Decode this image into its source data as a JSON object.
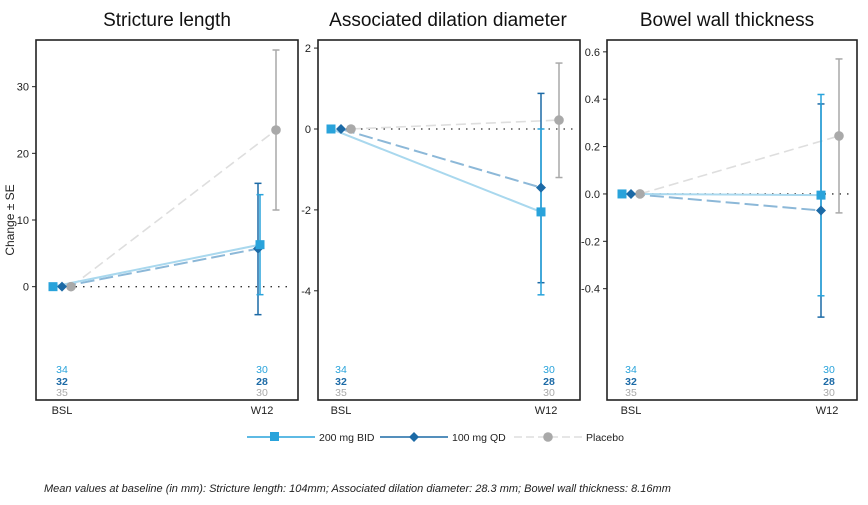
{
  "colors": {
    "s200": "#29a3db",
    "s200_line": "#a9d8ee",
    "s100": "#1c6aa6",
    "s100_line": "#8cb8d8",
    "placebo": "#a9a9a9",
    "placebo_line": "#dedede"
  },
  "legend": [
    {
      "label": "200 mg BID",
      "marker": "square"
    },
    {
      "label": "100 mg QD",
      "marker": "diamond"
    },
    {
      "label": "Placebo",
      "marker": "circle"
    }
  ],
  "footnote": "Mean values at baseline (in mm): Stricture length: 104mm; Associated dilation diameter: 28.3 mm; Bowel wall thickness: 8.16mm",
  "chart_data": [
    {
      "type": "line",
      "title": "Stricture length",
      "ylabel": "Change ± SE",
      "categories": [
        "BSL",
        "W12"
      ],
      "ylim": [
        -17,
        37
      ],
      "yticks": [
        0,
        10,
        20,
        30
      ],
      "ytick_labels": [
        "0",
        "10",
        "20",
        "30"
      ],
      "series": [
        {
          "name": "200 mg BID",
          "values": [
            0,
            6.3
          ],
          "err_low": [
            0,
            -1.2
          ],
          "err_high": [
            0,
            13.8
          ],
          "n": [
            34,
            30
          ]
        },
        {
          "name": "100 mg QD",
          "values": [
            0,
            5.7
          ],
          "err_low": [
            0,
            -4.2
          ],
          "err_high": [
            0,
            15.5
          ],
          "n": [
            32,
            28
          ]
        },
        {
          "name": "Placebo",
          "values": [
            0,
            23.5
          ],
          "err_low": [
            0,
            11.5
          ],
          "err_high": [
            0,
            35.5
          ],
          "n": [
            35,
            30
          ]
        }
      ]
    },
    {
      "type": "line",
      "title": "Associated dilation diameter",
      "categories": [
        "BSL",
        "W12"
      ],
      "ylim": [
        -6.7,
        2.2
      ],
      "yticks": [
        -4,
        -2,
        0,
        2
      ],
      "ytick_labels": [
        "-4",
        "-2",
        "0",
        "2"
      ],
      "series": [
        {
          "name": "200 mg BID",
          "values": [
            0,
            -2.05
          ],
          "err_low": [
            0,
            -4.1
          ],
          "err_high": [
            0,
            0.0
          ],
          "n": [
            34,
            30
          ]
        },
        {
          "name": "100 mg QD",
          "values": [
            0,
            -1.45
          ],
          "err_low": [
            0,
            -3.8
          ],
          "err_high": [
            0,
            0.88
          ],
          "n": [
            32,
            28
          ]
        },
        {
          "name": "Placebo",
          "values": [
            0,
            0.22
          ],
          "err_low": [
            0,
            -1.2
          ],
          "err_high": [
            0,
            1.63
          ],
          "n": [
            35,
            30
          ]
        }
      ]
    },
    {
      "type": "line",
      "title": "Bowel wall thickness",
      "categories": [
        "BSL",
        "W12"
      ],
      "ylim": [
        -0.87,
        0.65
      ],
      "yticks": [
        -0.4,
        -0.2,
        0.0,
        0.2,
        0.4,
        0.6
      ],
      "ytick_labels": [
        "-0.4",
        "-0.2",
        "0.0",
        "0.2",
        "0.4",
        "0.6"
      ],
      "series": [
        {
          "name": "200 mg BID",
          "values": [
            0,
            -0.005
          ],
          "err_low": [
            0,
            -0.43
          ],
          "err_high": [
            0,
            0.42
          ],
          "n": [
            34,
            30
          ]
        },
        {
          "name": "100 mg QD",
          "values": [
            0,
            -0.07
          ],
          "err_low": [
            0,
            -0.52
          ],
          "err_high": [
            0,
            0.38
          ],
          "n": [
            32,
            28
          ]
        },
        {
          "name": "Placebo",
          "values": [
            0,
            0.245
          ],
          "err_low": [
            0,
            -0.08
          ],
          "err_high": [
            0,
            0.57
          ],
          "n": [
            35,
            30
          ]
        }
      ]
    }
  ]
}
